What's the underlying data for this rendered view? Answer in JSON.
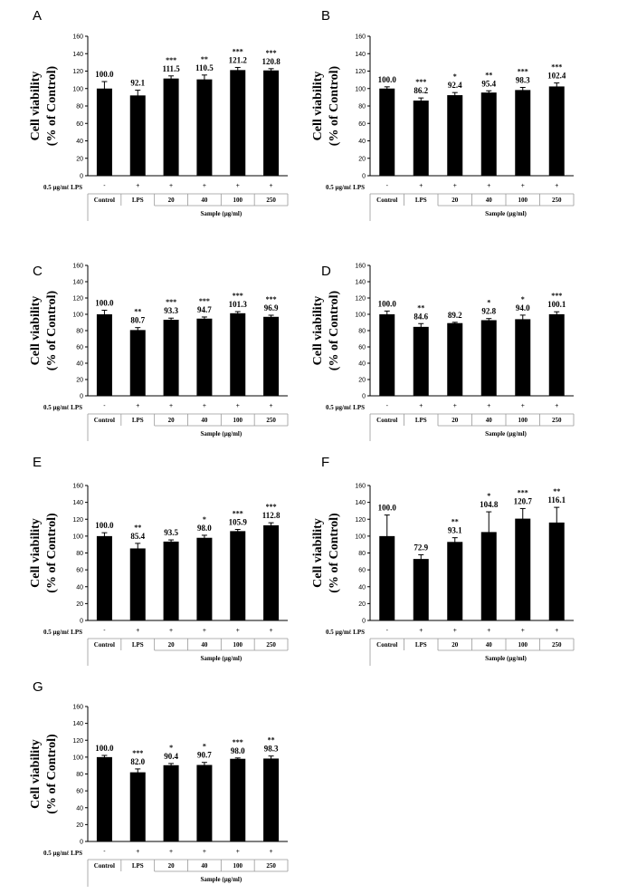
{
  "colors": {
    "bar": "#000000",
    "axis": "#000000",
    "table_line": "#999999"
  },
  "chart_data": [
    {
      "type": "bar",
      "panel": "A",
      "ylabel_line1": "Cell viability",
      "ylabel_line2": "(% of Control)",
      "ylim": [
        0,
        160
      ],
      "yticks": [
        0,
        20,
        40,
        60,
        80,
        100,
        120,
        140,
        160
      ],
      "row_label": "0.5 μg/mℓ LPS",
      "lps_row": [
        "-",
        "+",
        "+",
        "+",
        "+",
        "+"
      ],
      "categories": [
        "Control",
        "LPS",
        "20",
        "40",
        "100",
        "250"
      ],
      "xlabel": "Sample (μg/ml)",
      "values": [
        100.0,
        92.1,
        111.5,
        110.5,
        121.2,
        120.8
      ],
      "value_labels": [
        "100.0",
        "92.1",
        "111.5",
        "110.5",
        "121.2",
        "120.8"
      ],
      "errors": [
        8,
        6,
        3,
        5,
        3,
        2
      ],
      "significance": [
        "",
        "",
        "***",
        "**",
        "***",
        "***"
      ]
    },
    {
      "type": "bar",
      "panel": "B",
      "ylabel_line1": "Cell viability",
      "ylabel_line2": "(% of Control)",
      "ylim": [
        0,
        160
      ],
      "yticks": [
        0,
        20,
        40,
        60,
        80,
        100,
        120,
        140,
        160
      ],
      "row_label": "0.5 μg/mℓ LPS",
      "lps_row": [
        "-",
        "+",
        "+",
        "+",
        "+",
        "+"
      ],
      "categories": [
        "Control",
        "LPS",
        "20",
        "40",
        "100",
        "250"
      ],
      "xlabel": "Sample (μg/ml)",
      "values": [
        100.0,
        86.2,
        92.4,
        95.4,
        98.3,
        102.4
      ],
      "value_labels": [
        "100.0",
        "86.2",
        "92.4",
        "95.4",
        "98.3",
        "102.4"
      ],
      "errors": [
        2,
        3,
        3,
        2,
        3,
        4
      ],
      "significance": [
        "",
        "***",
        "*",
        "**",
        "***",
        "***"
      ]
    },
    {
      "type": "bar",
      "panel": "C",
      "ylabel_line1": "Cell viability",
      "ylabel_line2": "(% of Control)",
      "ylim": [
        0,
        160
      ],
      "yticks": [
        0,
        20,
        40,
        60,
        80,
        100,
        120,
        140,
        160
      ],
      "row_label": "0.5 μg/mℓ LPS",
      "lps_row": [
        "-",
        "+",
        "+",
        "+",
        "+",
        "+"
      ],
      "categories": [
        "Control",
        "LPS",
        "20",
        "40",
        "100",
        "250"
      ],
      "xlabel": "Sample (μg/ml)",
      "values": [
        100.0,
        80.7,
        93.3,
        94.7,
        101.3,
        96.9
      ],
      "value_labels": [
        "100.0",
        "80.7",
        "93.3",
        "94.7",
        "101.3",
        "96.9"
      ],
      "errors": [
        5,
        3,
        2,
        2,
        2,
        2
      ],
      "significance": [
        "",
        "**",
        "***",
        "***",
        "***",
        "***"
      ]
    },
    {
      "type": "bar",
      "panel": "D",
      "ylabel_line1": "Cell viability",
      "ylabel_line2": "(% of Control)",
      "ylim": [
        0,
        160
      ],
      "yticks": [
        0,
        20,
        40,
        60,
        80,
        100,
        120,
        140,
        160
      ],
      "row_label": "0.5 μg/mℓ LPS",
      "lps_row": [
        "-",
        "+",
        "+",
        "+",
        "+",
        "+"
      ],
      "categories": [
        "Control",
        "LPS",
        "20",
        "40",
        "100",
        "250"
      ],
      "xlabel": "Sample (μg/ml)",
      "values": [
        100.0,
        84.6,
        89.2,
        92.8,
        94.0,
        100.1
      ],
      "value_labels": [
        "100.0",
        "84.6",
        "89.2",
        "92.8",
        "94.0",
        "100.1"
      ],
      "errors": [
        4,
        4,
        1,
        2,
        5,
        3
      ],
      "significance": [
        "",
        "**",
        "",
        "*",
        "*",
        "***"
      ]
    },
    {
      "type": "bar",
      "panel": "E",
      "ylabel_line1": "Cell viability",
      "ylabel_line2": "(% of Control)",
      "ylim": [
        0,
        160
      ],
      "yticks": [
        0,
        20,
        40,
        60,
        80,
        100,
        120,
        140,
        160
      ],
      "row_label": "0.5 μg/mℓ LPS",
      "lps_row": [
        "-",
        "+",
        "+",
        "+",
        "+",
        "+"
      ],
      "categories": [
        "Control",
        "LPS",
        "20",
        "40",
        "100",
        "250"
      ],
      "xlabel": "Sample (μg/ml)",
      "values": [
        100.0,
        85.4,
        93.5,
        98.0,
        105.9,
        112.8
      ],
      "value_labels": [
        "100.0",
        "85.4",
        "93.5",
        "98.0",
        "105.9",
        "112.8"
      ],
      "errors": [
        4,
        6,
        2,
        3,
        2,
        3
      ],
      "significance": [
        "",
        "**",
        "",
        "*",
        "***",
        "***"
      ]
    },
    {
      "type": "bar",
      "panel": "F",
      "ylabel_line1": "Cell viability",
      "ylabel_line2": "(% of Control)",
      "ylim": [
        0,
        160
      ],
      "yticks": [
        0,
        20,
        40,
        60,
        80,
        100,
        120,
        140,
        160
      ],
      "row_label": "0.5 μg/mℓ LPS",
      "lps_row": [
        "-",
        "+",
        "+",
        "+",
        "+",
        "+"
      ],
      "categories": [
        "Control",
        "LPS",
        "20",
        "40",
        "100",
        "250"
      ],
      "xlabel": "Sample (μg/ml)",
      "values": [
        100.0,
        72.9,
        93.1,
        104.8,
        120.7,
        116.1
      ],
      "value_labels": [
        "100.0",
        "72.9",
        "93.1",
        "104.8",
        "120.7",
        "116.1"
      ],
      "errors": [
        25,
        5,
        5,
        24,
        12,
        18
      ],
      "significance": [
        "",
        "",
        "**",
        "*",
        "***",
        "**"
      ]
    },
    {
      "type": "bar",
      "panel": "G",
      "ylabel_line1": "Cell viability",
      "ylabel_line2": "(% of Control)",
      "ylim": [
        0,
        160
      ],
      "yticks": [
        0,
        20,
        40,
        60,
        80,
        100,
        120,
        140,
        160
      ],
      "row_label": "0.5 μg/mℓ LPS",
      "lps_row": [
        "-",
        "+",
        "+",
        "+",
        "+",
        "+"
      ],
      "categories": [
        "Control",
        "LPS",
        "20",
        "40",
        "100",
        "250"
      ],
      "xlabel": "Sample (μg/ml)",
      "values": [
        100.0,
        82.0,
        90.4,
        90.7,
        98.0,
        98.3
      ],
      "value_labels": [
        "100.0",
        "82.0",
        "90.4",
        "90.7",
        "98.0",
        "98.3"
      ],
      "errors": [
        2,
        4,
        2,
        3,
        1,
        3
      ],
      "significance": [
        "",
        "***",
        "*",
        "*",
        "***",
        "**"
      ]
    }
  ]
}
